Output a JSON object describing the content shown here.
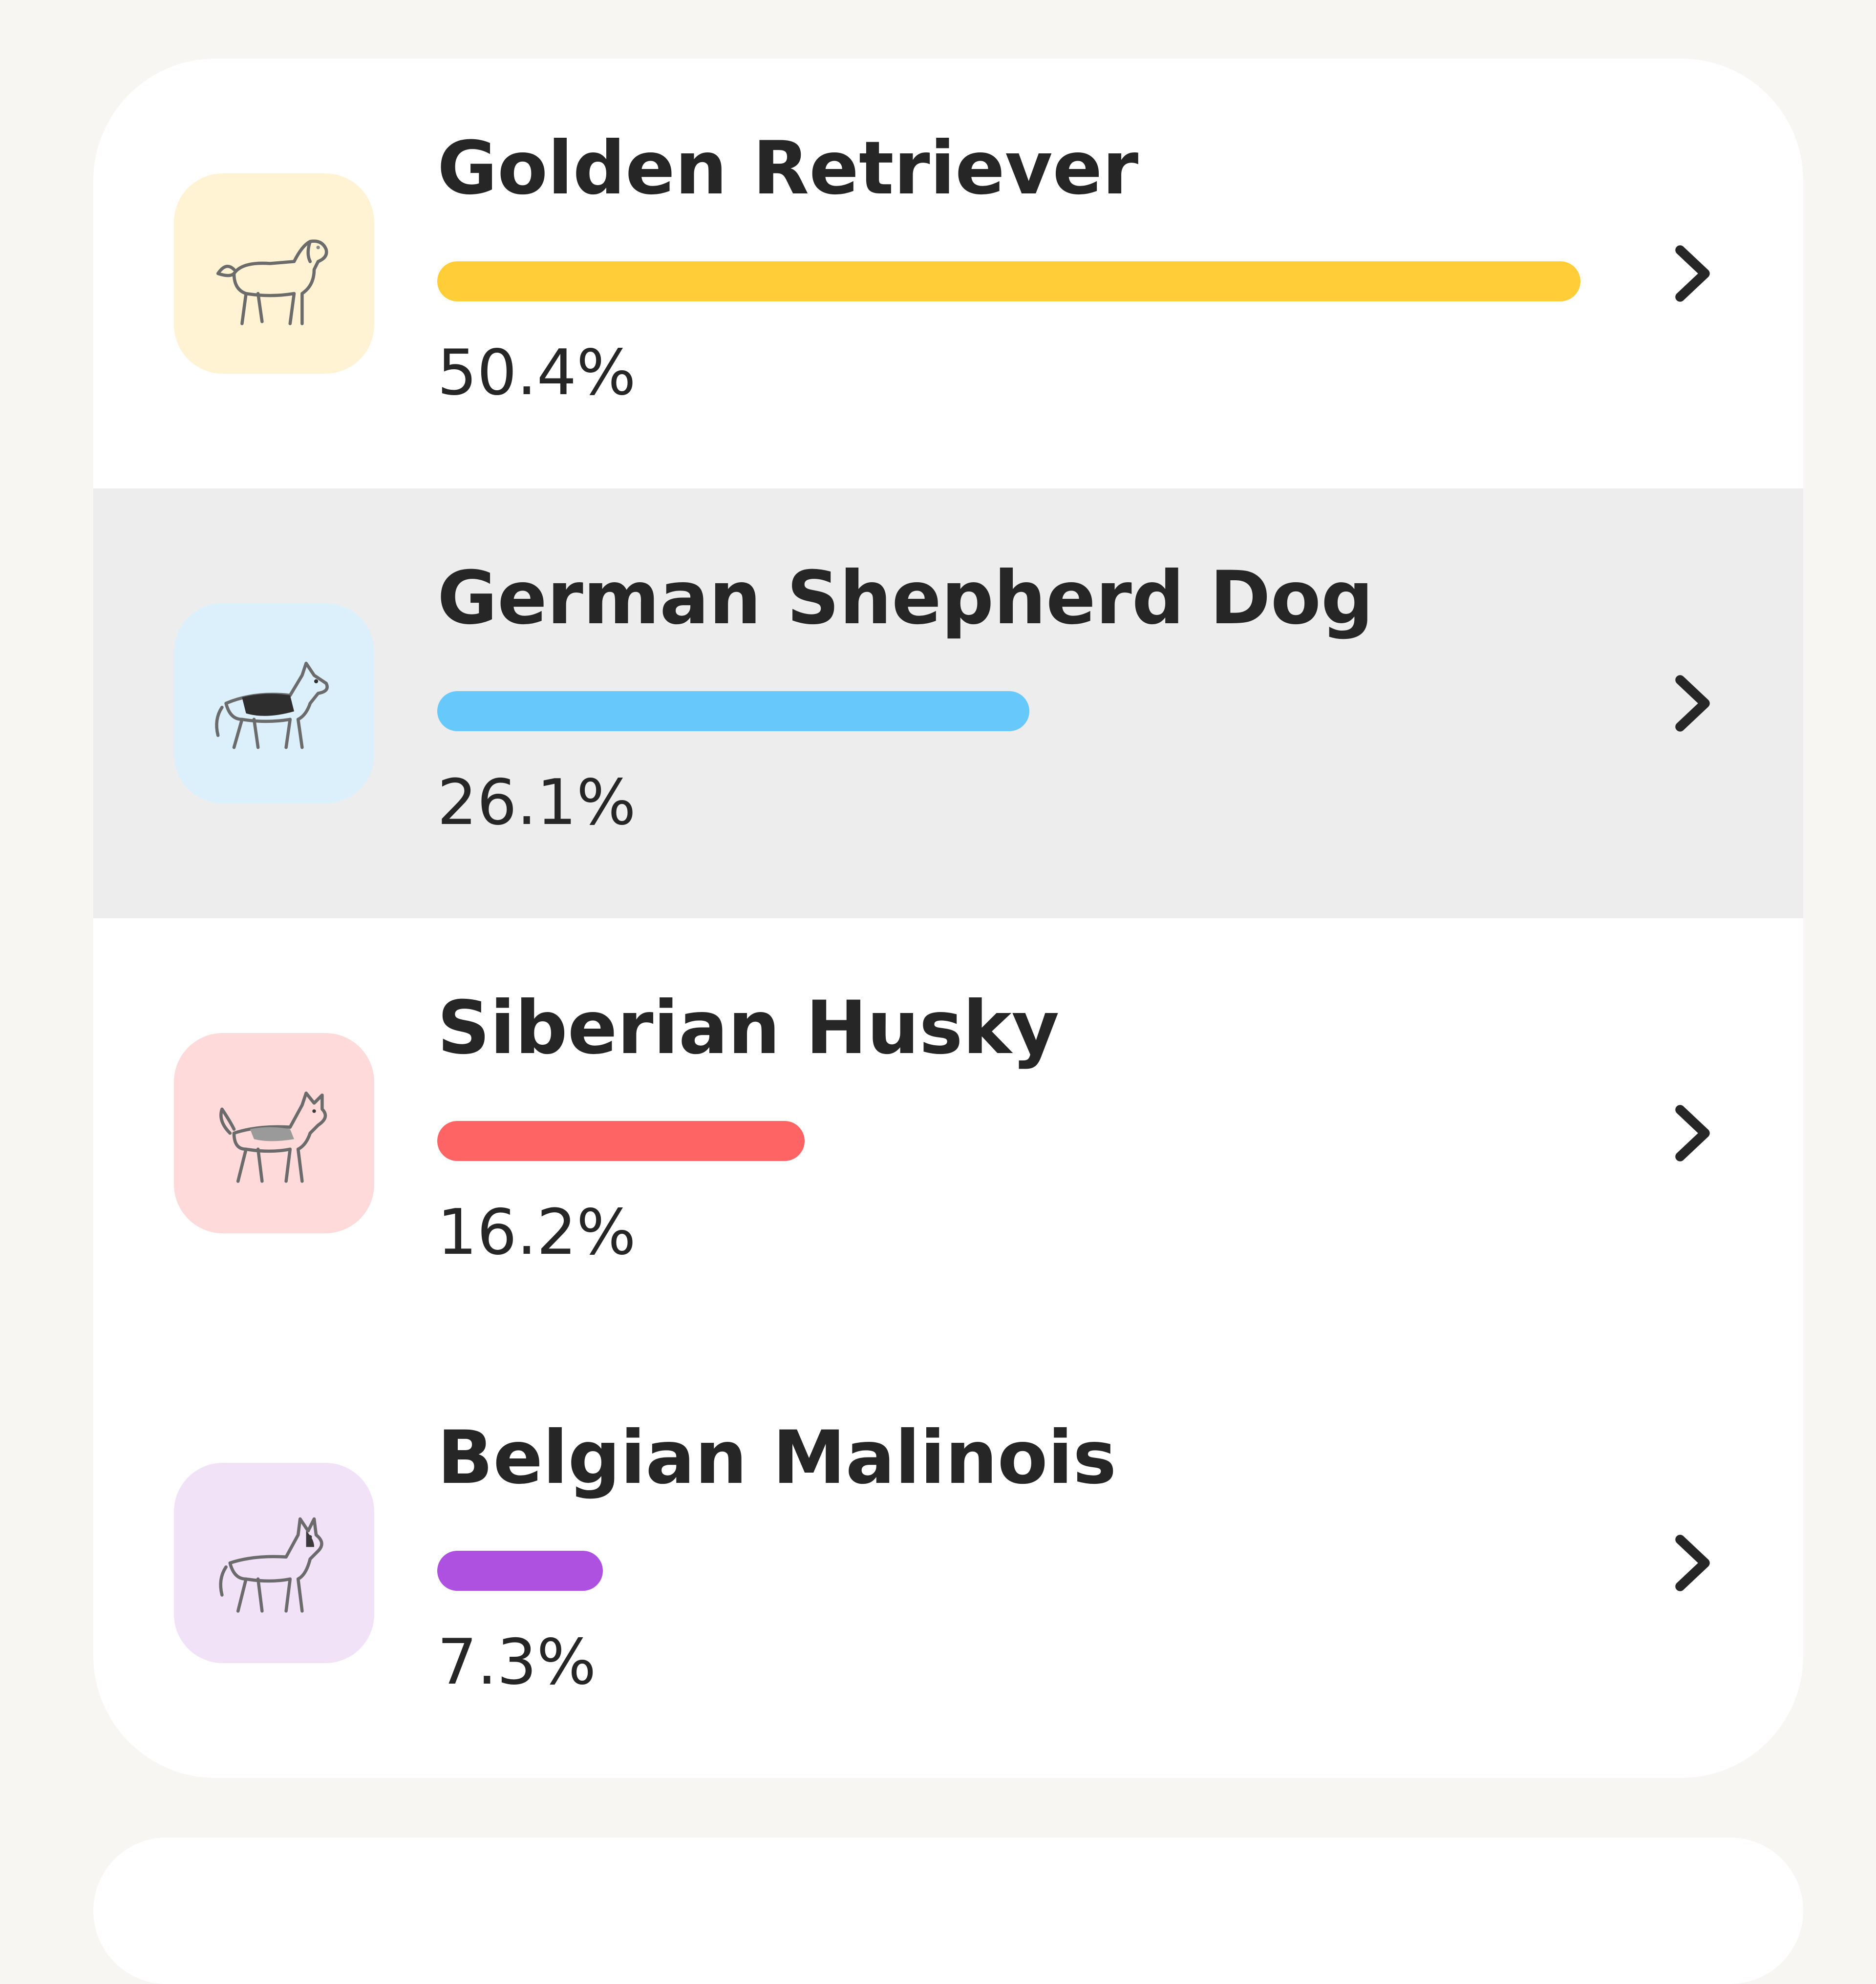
{
  "breeds": [
    {
      "name": "Golden Retriever",
      "percent_label": "50.4%",
      "percent": 50.4,
      "bar_color": "#ffcd38",
      "tile_color": "#fff3d4",
      "icon": "golden-retriever-icon",
      "highlighted": false
    },
    {
      "name": "German Shepherd Dog",
      "percent_label": "26.1%",
      "percent": 26.1,
      "bar_color": "#66c8fb",
      "tile_color": "#dcf0fb",
      "icon": "german-shepherd-icon",
      "highlighted": true
    },
    {
      "name": "Siberian Husky",
      "percent_label": "16.2%",
      "percent": 16.2,
      "bar_color": "#ff6464",
      "tile_color": "#ffdada",
      "icon": "siberian-husky-icon",
      "highlighted": false
    },
    {
      "name": "Belgian Malinois",
      "percent_label": "7.3%",
      "percent": 7.3,
      "bar_color": "#ae50e0",
      "tile_color": "#f1e2f8",
      "icon": "belgian-malinois-icon",
      "highlighted": false
    }
  ]
}
